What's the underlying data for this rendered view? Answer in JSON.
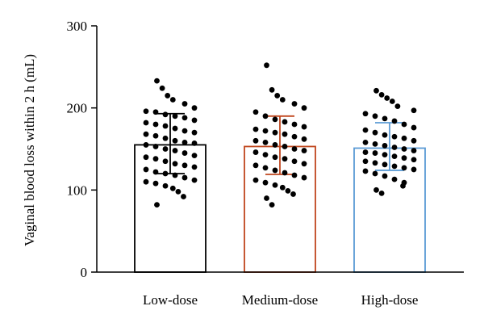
{
  "chart_data": {
    "type": "bar",
    "ylabel": "Vaginal blood loss within 2 h (mL)",
    "xlabel": "",
    "ylim": [
      0,
      300
    ],
    "yticks": [
      0,
      100,
      200,
      300
    ],
    "categories": [
      "Low-dose",
      "Medium-dose",
      "High-dose"
    ],
    "values": [
      155,
      153,
      151
    ],
    "error": [
      {
        "low": 120,
        "high": 193
      },
      {
        "low": 119,
        "high": 190
      },
      {
        "low": 124,
        "high": 182
      }
    ],
    "bar_colors": [
      "#000000",
      "#c0461d",
      "#5b9bd5"
    ],
    "points": [
      [
        233,
        224,
        215,
        210,
        205,
        200,
        196,
        195,
        192,
        190,
        188,
        185,
        182,
        180,
        178,
        175,
        172,
        170,
        168,
        166,
        163,
        160,
        158,
        157,
        155,
        153,
        150,
        148,
        145,
        142,
        140,
        138,
        135,
        132,
        130,
        128,
        125,
        122,
        120,
        118,
        115,
        112,
        110,
        108,
        105,
        102,
        98,
        92,
        82
      ],
      [
        252,
        222,
        215,
        210,
        205,
        200,
        195,
        190,
        186,
        183,
        180,
        177,
        174,
        172,
        170,
        168,
        165,
        162,
        160,
        158,
        155,
        153,
        150,
        148,
        146,
        143,
        140,
        138,
        135,
        132,
        130,
        127,
        124,
        121,
        118,
        115,
        112,
        109,
        106,
        103,
        99,
        95,
        90,
        82
      ],
      [
        221,
        216,
        212,
        208,
        202,
        197,
        193,
        190,
        187,
        184,
        180,
        176,
        173,
        170,
        167,
        165,
        163,
        160,
        158,
        156,
        154,
        152,
        150,
        148,
        146,
        145,
        143,
        141,
        139,
        137,
        135,
        133,
        131,
        129,
        127,
        125,
        123,
        120,
        117,
        113,
        109,
        105,
        100,
        96
      ]
    ]
  }
}
